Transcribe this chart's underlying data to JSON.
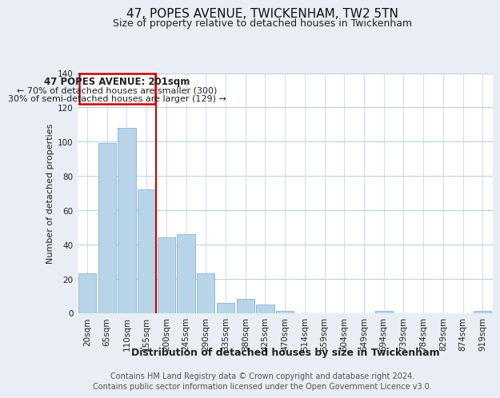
{
  "title": "47, POPES AVENUE, TWICKENHAM, TW2 5TN",
  "subtitle": "Size of property relative to detached houses in Twickenham",
  "xlabel": "Distribution of detached houses by size in Twickenham",
  "ylabel": "Number of detached properties",
  "bar_labels": [
    "20sqm",
    "65sqm",
    "110sqm",
    "155sqm",
    "200sqm",
    "245sqm",
    "290sqm",
    "335sqm",
    "380sqm",
    "425sqm",
    "470sqm",
    "514sqm",
    "559sqm",
    "604sqm",
    "649sqm",
    "694sqm",
    "739sqm",
    "784sqm",
    "829sqm",
    "874sqm",
    "919sqm"
  ],
  "bar_values": [
    23,
    99,
    108,
    72,
    44,
    46,
    23,
    6,
    8,
    5,
    1,
    0,
    0,
    0,
    0,
    1,
    0,
    0,
    0,
    0,
    1
  ],
  "bar_color": "#b8d4e8",
  "bar_edge_color": "#8ab4d4",
  "ylim": [
    0,
    140
  ],
  "yticks": [
    0,
    20,
    40,
    60,
    80,
    100,
    120,
    140
  ],
  "annotation_title": "47 POPES AVENUE: 201sqm",
  "annotation_line1": "← 70% of detached houses are smaller (300)",
  "annotation_line2": "30% of semi-detached houses are larger (129) →",
  "annotation_box_color": "#ffffff",
  "annotation_border_color": "#cc0000",
  "footer_line1": "Contains HM Land Registry data © Crown copyright and database right 2024.",
  "footer_line2": "Contains public sector information licensed under the Open Government Licence v3.0.",
  "bg_color": "#e8eef4",
  "plot_bg_color": "#ffffff",
  "grid_color": "#c0d0e0",
  "vertical_line_x": 3.5,
  "vertical_line_color": "#cc0000",
  "title_fontsize": 11,
  "subtitle_fontsize": 9,
  "xlabel_fontsize": 9,
  "ylabel_fontsize": 8,
  "tick_fontsize": 7.5,
  "footer_fontsize": 7
}
